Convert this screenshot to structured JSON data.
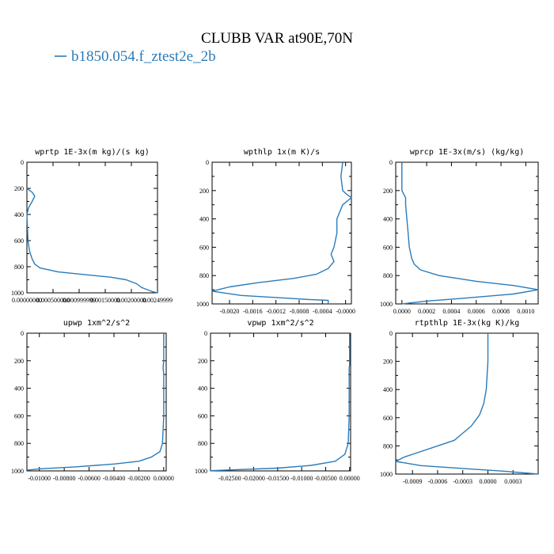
{
  "figure": {
    "title": "CLUBB VAR at90E,70N",
    "legend": [
      {
        "label": "b1850.054.f_ztest2e_2b",
        "color": "#2b7bb9"
      }
    ]
  },
  "chart_data": [
    {
      "type": "line",
      "title": "wprtp  1E-3x(m kg)/(s kg)",
      "xlim": [
        0,
        0.0025
      ],
      "ylim": [
        1000,
        0
      ],
      "xticks": [
        "0.00000000",
        "0.000500000",
        "0.000999999",
        "0.00150000",
        "0.00200000",
        "0.00249999"
      ],
      "xtick_values": [
        0,
        0.0005,
        0.001,
        0.0015,
        0.002,
        0.0025
      ],
      "yticks": [
        "0",
        "200",
        "400",
        "600",
        "800",
        "1000"
      ],
      "ytick_values": [
        0,
        200,
        400,
        600,
        800,
        1000
      ],
      "series": [
        {
          "color": "#2b7bb9",
          "points": [
            [
              0.0,
              200
            ],
            [
              0.0001,
              230
            ],
            [
              0.00015,
              260
            ],
            [
              0.0001,
              300
            ],
            [
              3e-05,
              350
            ],
            [
              0.0,
              400
            ],
            [
              1e-05,
              500
            ],
            [
              2e-05,
              600
            ],
            [
              5e-05,
              680
            ],
            [
              0.0001,
              740
            ],
            [
              0.00015,
              780
            ],
            [
              0.00025,
              810
            ],
            [
              0.0006,
              840
            ],
            [
              0.0011,
              860
            ],
            [
              0.0016,
              880
            ],
            [
              0.0019,
              900
            ],
            [
              0.0021,
              930
            ],
            [
              0.0022,
              960
            ],
            [
              0.0024,
              990
            ],
            [
              0.0025,
              1000
            ]
          ]
        }
      ]
    },
    {
      "type": "line",
      "title": "wpthlp  1x(m K)/s",
      "xlim": [
        -0.0023,
        0.0001
      ],
      "ylim": [
        1000,
        0
      ],
      "xticks": [
        "-0.0020",
        "-0.0016",
        "-0.0012",
        "-0.0008",
        "-0.0004",
        "-0.0000"
      ],
      "xtick_values": [
        -0.002,
        -0.0016,
        -0.0012,
        -0.0008,
        -0.0004,
        0
      ],
      "yticks": [
        "0",
        "200",
        "400",
        "600",
        "800",
        "1000"
      ],
      "ytick_values": [
        0,
        200,
        400,
        600,
        800,
        1000
      ],
      "series": [
        {
          "color": "#2b7bb9",
          "points": [
            [
              -5e-05,
              0
            ],
            [
              -8e-05,
              100
            ],
            [
              -5e-05,
              200
            ],
            [
              0.0,
              220
            ],
            [
              0.0001,
              250
            ],
            [
              -5e-05,
              300
            ],
            [
              -0.00015,
              400
            ],
            [
              -0.00015,
              500
            ],
            [
              -0.0002,
              600
            ],
            [
              -0.00025,
              650
            ],
            [
              -0.0002,
              700
            ],
            [
              -0.0003,
              750
            ],
            [
              -0.0005,
              790
            ],
            [
              -0.0009,
              820
            ],
            [
              -0.0015,
              850
            ],
            [
              -0.002,
              880
            ],
            [
              -0.0023,
              910
            ],
            [
              -0.0018,
              940
            ],
            [
              -0.001,
              960
            ],
            [
              -0.0006,
              970
            ],
            [
              -0.0003,
              975
            ],
            [
              -0.0003,
              1000
            ]
          ]
        }
      ]
    },
    {
      "type": "line",
      "title": "wprcp  1E-3x(m/s) (kg/kg)",
      "xlim": [
        -5e-05,
        0.0011
      ],
      "ylim": [
        1000,
        0
      ],
      "xticks": [
        "0.0000",
        "0.0002",
        "0.0004",
        "0.0006",
        "0.0008",
        "0.0010"
      ],
      "xtick_values": [
        0,
        0.0002,
        0.0004,
        0.0006,
        0.0008,
        0.001
      ],
      "yticks": [
        "0",
        "200",
        "400",
        "600",
        "800",
        "1000"
      ],
      "ytick_values": [
        0,
        200,
        400,
        600,
        800,
        1000
      ],
      "series": [
        {
          "color": "#2b7bb9",
          "points": [
            [
              0.0,
              0
            ],
            [
              0.0,
              200
            ],
            [
              3e-05,
              250
            ],
            [
              3e-05,
              300
            ],
            [
              4e-05,
              400
            ],
            [
              5e-05,
              500
            ],
            [
              6e-05,
              600
            ],
            [
              8e-05,
              680
            ],
            [
              0.0001,
              720
            ],
            [
              0.00015,
              760
            ],
            [
              0.0003,
              800
            ],
            [
              0.0006,
              840
            ],
            [
              0.0009,
              870
            ],
            [
              0.0011,
              900
            ],
            [
              0.0009,
              930
            ],
            [
              0.0005,
              960
            ],
            [
              0.0002,
              980
            ],
            [
              0.0,
              1000
            ]
          ]
        }
      ]
    },
    {
      "type": "line",
      "title": "upwp  1xm^2/s^2",
      "xlim": [
        -0.011,
        0.0002
      ],
      "ylim": [
        1000,
        0
      ],
      "xticks": [
        "-0.01000",
        "-0.00800",
        "-0.00600",
        "-0.00400",
        "-0.00200",
        "0.00000"
      ],
      "xtick_values": [
        -0.01,
        -0.008,
        -0.006,
        -0.004,
        -0.002,
        0
      ],
      "yticks": [
        "0",
        "200",
        "400",
        "600",
        "800",
        "1000"
      ],
      "ytick_values": [
        0,
        200,
        400,
        600,
        800,
        1000
      ],
      "series": [
        {
          "color": "#2b7bb9",
          "points": [
            [
              0.0,
              0
            ],
            [
              0.0,
              200
            ],
            [
              -5e-05,
              250
            ],
            [
              0.0,
              300
            ],
            [
              0.0,
              600
            ],
            [
              -0.0001,
              800
            ],
            [
              -0.0003,
              860
            ],
            [
              -0.001,
              900
            ],
            [
              -0.002,
              930
            ],
            [
              -0.004,
              950
            ],
            [
              -0.007,
              970
            ],
            [
              -0.01,
              985
            ],
            [
              -0.011,
              995
            ]
          ]
        }
      ]
    },
    {
      "type": "line",
      "title": "vpwp  1xm^2/s^2",
      "xlim": [
        -0.029,
        0.0002
      ],
      "ylim": [
        1000,
        0
      ],
      "xticks": [
        "-0.02500",
        "-0.02000",
        "-0.01500",
        "-0.01000",
        "-0.00500",
        "0.00000"
      ],
      "xtick_values": [
        -0.025,
        -0.02,
        -0.015,
        -0.01,
        -0.005,
        0
      ],
      "yticks": [
        "0",
        "200",
        "400",
        "600",
        "800",
        "1000"
      ],
      "ytick_values": [
        0,
        200,
        400,
        600,
        800,
        1000
      ],
      "series": [
        {
          "color": "#2b7bb9",
          "points": [
            [
              0.0,
              0
            ],
            [
              0.0,
              230
            ],
            [
              -0.0001,
              250
            ],
            [
              -0.0001,
              300
            ],
            [
              -0.0001,
              600
            ],
            [
              -0.0003,
              800
            ],
            [
              -0.001,
              880
            ],
            [
              -0.003,
              930
            ],
            [
              -0.008,
              960
            ],
            [
              -0.015,
              980
            ],
            [
              -0.024,
              992
            ],
            [
              -0.029,
              998
            ]
          ]
        }
      ]
    },
    {
      "type": "line",
      "title": "rtpthlp  1E-3x(kg K)/kg",
      "xlim": [
        -0.0011,
        0.0006
      ],
      "ylim": [
        1000,
        0
      ],
      "xticks": [
        "-0.0009",
        "-0.0006",
        "-0.0003",
        "0.0000",
        "0.0003"
      ],
      "xtick_values": [
        -0.0009,
        -0.0006,
        -0.0003,
        0,
        0.0003
      ],
      "yticks": [
        "0",
        "200",
        "400",
        "600",
        "800",
        "1000"
      ],
      "ytick_values": [
        0,
        200,
        400,
        600,
        800,
        1000
      ],
      "series": [
        {
          "color": "#2b7bb9",
          "points": [
            [
              0.0,
              0
            ],
            [
              0.0,
              200
            ],
            [
              -2e-05,
              400
            ],
            [
              -5e-05,
              500
            ],
            [
              -0.0001,
              580
            ],
            [
              -0.00015,
              620
            ],
            [
              -0.0002,
              660
            ],
            [
              -0.0003,
              710
            ],
            [
              -0.0004,
              760
            ],
            [
              -0.0006,
              800
            ],
            [
              -0.0008,
              840
            ],
            [
              -0.001,
              880
            ],
            [
              -0.0011,
              910
            ],
            [
              -0.0008,
              940
            ],
            [
              -0.0003,
              960
            ],
            [
              0.0002,
              980
            ],
            [
              0.0006,
              1000
            ]
          ]
        }
      ]
    }
  ]
}
